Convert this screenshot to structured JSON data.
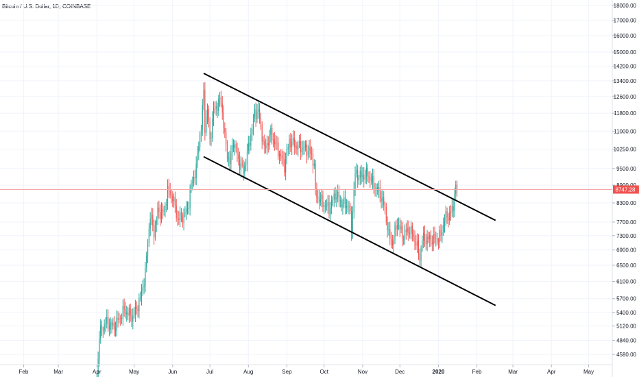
{
  "header": {
    "title": "Bitcoin / U.S. Dollar, 1D, COINBASE"
  },
  "colors": {
    "up": "#26a69a",
    "down": "#ef5350",
    "price_line": "#f7a8a8",
    "price_badge": "#ef5350",
    "trendline": "#000000"
  },
  "price_label": "8747.28",
  "chart_data": {
    "type": "candlestick",
    "title": "Bitcoin / U.S. Dollar, 1D, COINBASE",
    "y_scale": "log",
    "ylim": [
      4400,
      18400
    ],
    "y_ticks": [
      4580,
      4840,
      5120,
      5400,
      5700,
      6100,
      6500,
      6900,
      7300,
      7700,
      8300,
      8900,
      9500,
      10250,
      11000,
      11800,
      12600,
      13400,
      14200,
      15000,
      16000,
      17000,
      18000
    ],
    "y_tick_labels": [
      "4580.00",
      "4840.00",
      "5120.00",
      "5400.00",
      "5700.00",
      "6100.00",
      "6500.00",
      "6900.00",
      "7300.00",
      "7700.00",
      "8300.00",
      "8900.00",
      "9500.00",
      "10250.00",
      "11000.00",
      "11800.00",
      "12600.00",
      "13400.00",
      "14200.00",
      "15000.00",
      "16000.00",
      "17000.00",
      "18000.00"
    ],
    "x_ticks": [
      "2019-02-01",
      "2019-03-01",
      "2019-04-01",
      "2019-05-01",
      "2019-06-01",
      "2019-07-01",
      "2019-08-01",
      "2019-09-01",
      "2019-10-01",
      "2019-11-01",
      "2019-12-01",
      "2020-01-01",
      "2020-02-01",
      "2020-03-01",
      "2020-04-01",
      "2020-05-01"
    ],
    "x_tick_labels": [
      "Feb",
      "Mar",
      "Apr",
      "May",
      "Jun",
      "Jul",
      "Aug",
      "Sep",
      "Oct",
      "Nov",
      "Dec",
      "2020",
      "Feb",
      "Mar",
      "Apr",
      "May"
    ],
    "xlim": [
      "2019-01-13",
      "2020-05-20"
    ],
    "price_line": 8747.28,
    "price_path": [
      [
        "2019-04-01",
        4150
      ],
      [
        "2019-04-03",
        4950
      ],
      [
        "2019-04-08",
        5200
      ],
      [
        "2019-04-15",
        5100
      ],
      [
        "2019-04-23",
        5450
      ],
      [
        "2019-04-30",
        5300
      ],
      [
        "2019-05-06",
        5700
      ],
      [
        "2019-05-10",
        6300
      ],
      [
        "2019-05-12",
        7150
      ],
      [
        "2019-05-14",
        7900
      ],
      [
        "2019-05-17",
        7400
      ],
      [
        "2019-05-20",
        8000
      ],
      [
        "2019-05-25",
        8000
      ],
      [
        "2019-05-28",
        8700
      ],
      [
        "2019-06-01",
        8500
      ],
      [
        "2019-06-05",
        7800
      ],
      [
        "2019-06-10",
        7900
      ],
      [
        "2019-06-13",
        8100
      ],
      [
        "2019-06-16",
        8900
      ],
      [
        "2019-06-20",
        9500
      ],
      [
        "2019-06-22",
        10500
      ],
      [
        "2019-06-24",
        11200
      ],
      [
        "2019-06-26",
        12800
      ],
      [
        "2019-06-27",
        11200
      ],
      [
        "2019-06-29",
        12000
      ],
      [
        "2019-07-01",
        10600
      ],
      [
        "2019-07-04",
        11900
      ],
      [
        "2019-07-08",
        12300
      ],
      [
        "2019-07-10",
        12400
      ],
      [
        "2019-07-14",
        10300
      ],
      [
        "2019-07-17",
        9700
      ],
      [
        "2019-07-20",
        10600
      ],
      [
        "2019-07-24",
        9800
      ],
      [
        "2019-07-28",
        9400
      ],
      [
        "2019-08-01",
        10300
      ],
      [
        "2019-08-06",
        11800
      ],
      [
        "2019-08-09",
        11900
      ],
      [
        "2019-08-14",
        10200
      ],
      [
        "2019-08-19",
        10900
      ],
      [
        "2019-08-25",
        10200
      ],
      [
        "2019-08-30",
        9600
      ],
      [
        "2019-09-03",
        10600
      ],
      [
        "2019-09-08",
        10400
      ],
      [
        "2019-09-14",
        10300
      ],
      [
        "2019-09-19",
        10200
      ],
      [
        "2019-09-23",
        9700
      ],
      [
        "2019-09-24",
        8600
      ],
      [
        "2019-09-30",
        8300
      ],
      [
        "2019-10-05",
        8100
      ],
      [
        "2019-10-10",
        8600
      ],
      [
        "2019-10-15",
        8300
      ],
      [
        "2019-10-21",
        8200
      ],
      [
        "2019-10-23",
        7500
      ],
      [
        "2019-10-25",
        8700
      ],
      [
        "2019-10-26",
        9300
      ],
      [
        "2019-10-31",
        9200
      ],
      [
        "2019-11-05",
        9300
      ],
      [
        "2019-11-10",
        8900
      ],
      [
        "2019-11-15",
        8600
      ],
      [
        "2019-11-19",
        8100
      ],
      [
        "2019-11-22",
        7300
      ],
      [
        "2019-11-25",
        7100
      ],
      [
        "2019-11-29",
        7700
      ],
      [
        "2019-12-03",
        7300
      ],
      [
        "2019-12-09",
        7500
      ],
      [
        "2019-12-14",
        7100
      ],
      [
        "2019-12-17",
        6700
      ],
      [
        "2019-12-19",
        7200
      ],
      [
        "2019-12-25",
        7200
      ],
      [
        "2019-12-31",
        7200
      ],
      [
        "2020-01-03",
        7300
      ],
      [
        "2020-01-06",
        7800
      ],
      [
        "2020-01-09",
        7900
      ],
      [
        "2020-01-13",
        8100
      ],
      [
        "2020-01-14",
        8800
      ],
      [
        "2020-01-16",
        8747
      ]
    ],
    "trendlines": [
      {
        "name": "upper-channel",
        "from": [
          "2019-06-26",
          13800
        ],
        "to": [
          "2020-02-16",
          7750
        ]
      },
      {
        "name": "lower-channel",
        "from": [
          "2019-06-26",
          9950
        ],
        "to": [
          "2020-02-16",
          5550
        ]
      }
    ]
  }
}
